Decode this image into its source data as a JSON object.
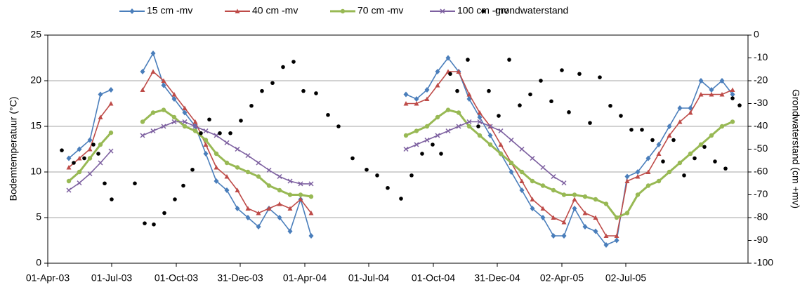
{
  "chart_data": {
    "type": "line",
    "y_label": "Bodemtemperatuur  (°C)",
    "y2_label": "Grondwaterstand (cm +mv)",
    "legend": "top",
    "grid": true,
    "xlim": [
      37712,
      38709
    ],
    "xticks": [
      {
        "value": 37712,
        "label": "01-Apr-03"
      },
      {
        "value": 37803,
        "label": "01-Jul-03"
      },
      {
        "value": 37895,
        "label": "01-Oct-03"
      },
      {
        "value": 37986,
        "label": "31-Dec-03"
      },
      {
        "value": 38078,
        "label": "01-Apr-04"
      },
      {
        "value": 38169,
        "label": "01-Jul-04"
      },
      {
        "value": 38261,
        "label": "01-Oct-04"
      },
      {
        "value": 38352,
        "label": "31-Dec-04"
      },
      {
        "value": 38444,
        "label": "02-Apr-05"
      },
      {
        "value": 38535,
        "label": "02-Jul-05"
      }
    ],
    "ylim": [
      0,
      25
    ],
    "yticks": [
      0,
      5,
      10,
      15,
      20,
      25
    ],
    "y2lim": [
      -100,
      0
    ],
    "y2ticks": [
      -100,
      -90,
      -80,
      -70,
      -60,
      -50,
      -40,
      -30,
      -20,
      -10,
      0
    ],
    "x": [
      37742,
      37757,
      37772,
      37787,
      37802,
      37817,
      37832,
      37847,
      37862,
      37877,
      37892,
      37907,
      37922,
      37937,
      37952,
      37967,
      37982,
      37997,
      38012,
      38027,
      38042,
      38057,
      38072,
      38087,
      38102,
      38117,
      38132,
      38147,
      38162,
      38177,
      38192,
      38207,
      38222,
      38237,
      38252,
      38267,
      38282,
      38297,
      38312,
      38327,
      38342,
      38357,
      38372,
      38387,
      38402,
      38417,
      38432,
      38447,
      38462,
      38477,
      38492,
      38507,
      38522,
      38537,
      38552,
      38567,
      38582,
      38597,
      38612,
      38627,
      38642,
      38657,
      38672,
      38687
    ],
    "series": [
      {
        "name": "15 cm -mv",
        "color": "#4a7ebb",
        "marker": "diamond",
        "values": [
          11.5,
          12.5,
          13.5,
          18.5,
          19,
          null,
          null,
          21,
          23,
          19.5,
          18,
          16.5,
          15,
          12,
          9,
          8,
          6,
          5,
          4,
          6,
          5,
          3.5,
          7,
          3,
          null,
          null,
          null,
          null,
          null,
          null,
          null,
          null,
          18.5,
          18,
          19,
          21,
          22.5,
          21,
          18,
          16,
          14,
          12,
          10,
          8,
          6,
          5,
          3,
          3,
          6,
          4,
          3.5,
          2,
          2.5,
          9.5,
          10,
          11.5,
          13,
          15,
          17,
          17,
          20,
          19,
          20,
          18.5
        ]
      },
      {
        "name": "40 cm -mv",
        "color": "#be4b48",
        "marker": "triangle",
        "values": [
          10.5,
          11.5,
          12.5,
          16,
          17.5,
          null,
          null,
          19,
          21,
          20,
          18.5,
          17,
          15.5,
          13,
          10.5,
          9.5,
          8,
          6,
          5.5,
          6,
          6.5,
          6,
          7,
          5.5,
          null,
          null,
          null,
          null,
          null,
          null,
          null,
          null,
          17.5,
          17.5,
          18,
          19.5,
          21,
          21,
          18.5,
          16.5,
          15,
          13,
          11,
          9,
          7,
          6,
          5,
          4.5,
          7,
          5.5,
          5,
          3,
          3,
          9,
          9.5,
          10,
          12,
          14,
          15.5,
          16.5,
          18.5,
          18.5,
          18.5,
          19
        ]
      },
      {
        "name": "70 cm -mv",
        "color": "#98b954",
        "marker": "circle",
        "values": [
          9,
          10,
          11.5,
          13,
          14.3,
          null,
          null,
          15.5,
          16.5,
          16.8,
          16,
          15,
          14.5,
          13.5,
          12,
          11,
          10.5,
          10,
          9.5,
          8.5,
          8,
          7.5,
          7.5,
          7.3,
          null,
          null,
          null,
          null,
          null,
          null,
          null,
          null,
          14,
          14.5,
          15,
          16,
          16.8,
          16.5,
          15,
          14,
          13,
          12,
          11,
          10,
          9,
          8.5,
          8,
          7.5,
          7.5,
          7.3,
          7,
          6.5,
          5,
          5.5,
          7.5,
          8.5,
          9,
          10,
          11,
          12,
          13,
          14,
          15,
          15.5
        ]
      },
      {
        "name": "100 cm -mv",
        "color": "#7d60a0",
        "marker": "cross",
        "values": [
          8,
          8.8,
          9.8,
          11,
          12.3,
          null,
          null,
          14,
          14.5,
          15,
          15.5,
          15.5,
          15,
          14.5,
          14,
          13.2,
          12.5,
          11.8,
          11,
          10.2,
          9.5,
          9,
          8.7,
          8.7,
          null,
          null,
          null,
          null,
          null,
          null,
          null,
          null,
          12.5,
          13,
          13.5,
          14,
          14.5,
          15,
          15.5,
          15.5,
          15,
          14.5,
          13.5,
          12.5,
          11.5,
          10.5,
          9.5,
          8.8,
          null,
          null,
          null,
          null,
          null,
          null,
          null,
          null,
          null,
          null,
          null,
          null,
          null,
          null,
          null,
          null
        ]
      },
      {
        "name": "grondwaterstand",
        "color": "#000000",
        "marker": "dot",
        "axis": "y2",
        "x": [
          37732,
          37749,
          37764,
          37777,
          37784,
          37793,
          37803,
          37836,
          37850,
          37863,
          37878,
          37893,
          37905,
          37918,
          37930,
          37942,
          37957,
          37972,
          37987,
          38002,
          38017,
          38032,
          38047,
          38062,
          38076,
          38094,
          38111,
          38126,
          38146,
          38166,
          38181,
          38196,
          38215,
          38230,
          38245,
          38260,
          38272,
          38285,
          38295,
          38310,
          38325,
          38340,
          38354,
          38369,
          38384,
          38399,
          38414,
          38429,
          38444,
          38454,
          38469,
          38484,
          38498,
          38513,
          38528,
          38543,
          38558,
          38573,
          38588,
          38603,
          38618,
          38633,
          38647,
          38662,
          38677,
          38687,
          38697
        ],
        "values": [
          -50.5,
          -56,
          -54,
          -48,
          -52,
          -65,
          -72,
          -65,
          -82.5,
          -83,
          -78,
          -72,
          -66,
          -59,
          -43,
          -37,
          -43,
          -43,
          -37.5,
          -31,
          -24.5,
          -21,
          -14,
          -11.7,
          -24.5,
          -25.5,
          -35,
          -40,
          -54,
          -59,
          -61.5,
          -67,
          -71.7,
          -61.5,
          -52,
          -48,
          -52,
          -17,
          -24.5,
          -10.8,
          -40,
          -24.5,
          -35.4,
          -10.8,
          -30.8,
          -26,
          -20,
          -29,
          -15.4,
          -33.8,
          -17,
          -38.5,
          -18.5,
          -31,
          -35.4,
          -41.5,
          -41.5,
          -46,
          -55.4,
          -46,
          -61.5,
          -54,
          -49,
          -55.4,
          -58.5,
          -27.7,
          -30.8
        ]
      }
    ]
  }
}
